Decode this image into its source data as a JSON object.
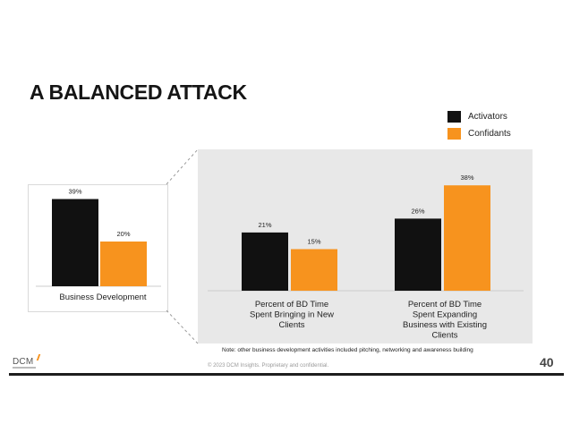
{
  "slide": {
    "title": "A BALANCED ATTACK",
    "note": "Note: other business development activities included pitching, networking and awareness building",
    "copyright": "© 2023 DCM Insights. Proprietary and confidential.",
    "page_number": "40",
    "logo_text": "DCM"
  },
  "legend": [
    {
      "label": "Activators",
      "color": "#111111"
    },
    {
      "label": "Confidants",
      "color": "#f7931e"
    }
  ],
  "chart_data": [
    {
      "type": "bar",
      "title": "",
      "categories": [
        "Business Development"
      ],
      "series": [
        {
          "name": "Activators",
          "values": [
            39
          ],
          "labels": [
            "39%"
          ]
        },
        {
          "name": "Confidants",
          "values": [
            20
          ],
          "labels": [
            "20%"
          ]
        }
      ],
      "ylim": [
        0,
        40
      ],
      "grid": false
    },
    {
      "type": "bar",
      "title": "",
      "categories": [
        [
          "Percent of BD Time",
          "Spent Bringing in New",
          "Clients"
        ],
        [
          "Percent of BD Time",
          "Spent Expanding",
          "Business with Existing",
          "Clients"
        ]
      ],
      "series": [
        {
          "name": "Activators",
          "values": [
            21,
            26
          ],
          "labels": [
            "21%",
            "26%"
          ]
        },
        {
          "name": "Confidants",
          "values": [
            15,
            38
          ],
          "labels": [
            "15%",
            "38%"
          ]
        }
      ],
      "ylim": [
        0,
        40
      ],
      "grid": false
    }
  ]
}
